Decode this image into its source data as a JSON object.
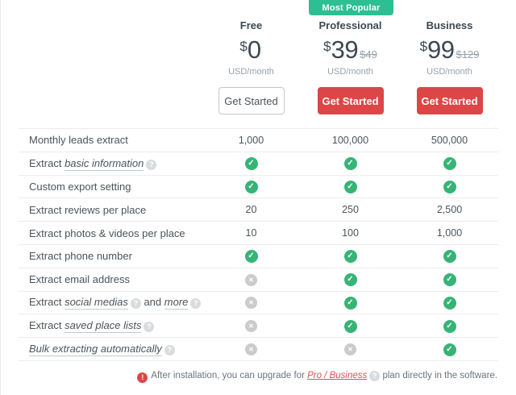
{
  "badge": {
    "label": "Most Popular",
    "color": "#2cbf92"
  },
  "currency_symbol": "$",
  "plans": [
    {
      "name": "Free",
      "price": "0",
      "old_price": "",
      "period": "USD/month",
      "cta": "Get Started",
      "style": "outline"
    },
    {
      "name": "Professional",
      "price": "39",
      "old_price": "$49",
      "period": "USD/month",
      "cta": "Get Started",
      "style": "solid"
    },
    {
      "name": "Business",
      "price": "99",
      "old_price": "$129",
      "period": "USD/month",
      "cta": "Get Started",
      "style": "solid"
    }
  ],
  "rows": [
    {
      "label": [
        {
          "t": "Monthly leads extract"
        }
      ],
      "values": [
        "1,000",
        "100,000",
        "500,000"
      ]
    },
    {
      "label": [
        {
          "t": "Extract "
        },
        {
          "t": "basic information",
          "em": true
        },
        {
          "tip": true
        }
      ],
      "values": [
        "check",
        "check",
        "check"
      ]
    },
    {
      "label": [
        {
          "t": "Custom export setting"
        }
      ],
      "values": [
        "check",
        "check",
        "check"
      ]
    },
    {
      "label": [
        {
          "t": "Extract reviews per place"
        }
      ],
      "values": [
        "20",
        "250",
        "2,500"
      ]
    },
    {
      "label": [
        {
          "t": "Extract photos & videos per place"
        }
      ],
      "values": [
        "10",
        "100",
        "1,000"
      ]
    },
    {
      "label": [
        {
          "t": "Extract phone number"
        }
      ],
      "values": [
        "check",
        "check",
        "check"
      ]
    },
    {
      "label": [
        {
          "t": "Extract email address"
        }
      ],
      "values": [
        "cross",
        "check",
        "check"
      ]
    },
    {
      "label": [
        {
          "t": "Extract "
        },
        {
          "t": "social medias",
          "em": true
        },
        {
          "tip": true
        },
        {
          "t": " and "
        },
        {
          "t": "more",
          "em": true
        },
        {
          "tip": true
        }
      ],
      "values": [
        "cross",
        "check",
        "check"
      ]
    },
    {
      "label": [
        {
          "t": "Extract "
        },
        {
          "t": "saved place lists",
          "em": true
        },
        {
          "tip": true
        }
      ],
      "values": [
        "cross",
        "check",
        "check"
      ]
    },
    {
      "label": [
        {
          "t": "Bulk extracting automatically",
          "em": true
        },
        {
          "tip": true
        }
      ],
      "values": [
        "cross",
        "cross",
        "check"
      ]
    }
  ],
  "footer": {
    "text_before": "After installation, you can upgrade for ",
    "link": "Pro / Business",
    "text_after": " plan directly in the software.",
    "icon_color": "#dc4646"
  },
  "status_colors": {
    "included": "#36b476",
    "excluded": "#cbcbcb",
    "accent_red": "#dc4646"
  }
}
